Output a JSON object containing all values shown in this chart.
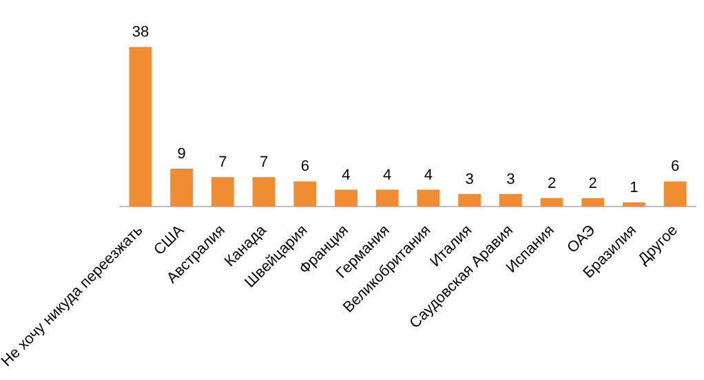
{
  "chart_data": {
    "type": "bar",
    "categories": [
      "Не хочу никуда переезжать",
      "США",
      "Австралия",
      "Канада",
      "Швейцария",
      "Франция",
      "Германия",
      "Великобритания",
      "Италия",
      "Саудовская Аравия",
      "Испания",
      "ОАЭ",
      "Бразилия",
      "Другое"
    ],
    "values": [
      38,
      9,
      7,
      7,
      6,
      4,
      4,
      4,
      3,
      3,
      2,
      2,
      1,
      6
    ],
    "color": "#f08c32",
    "data_labels": true
  }
}
